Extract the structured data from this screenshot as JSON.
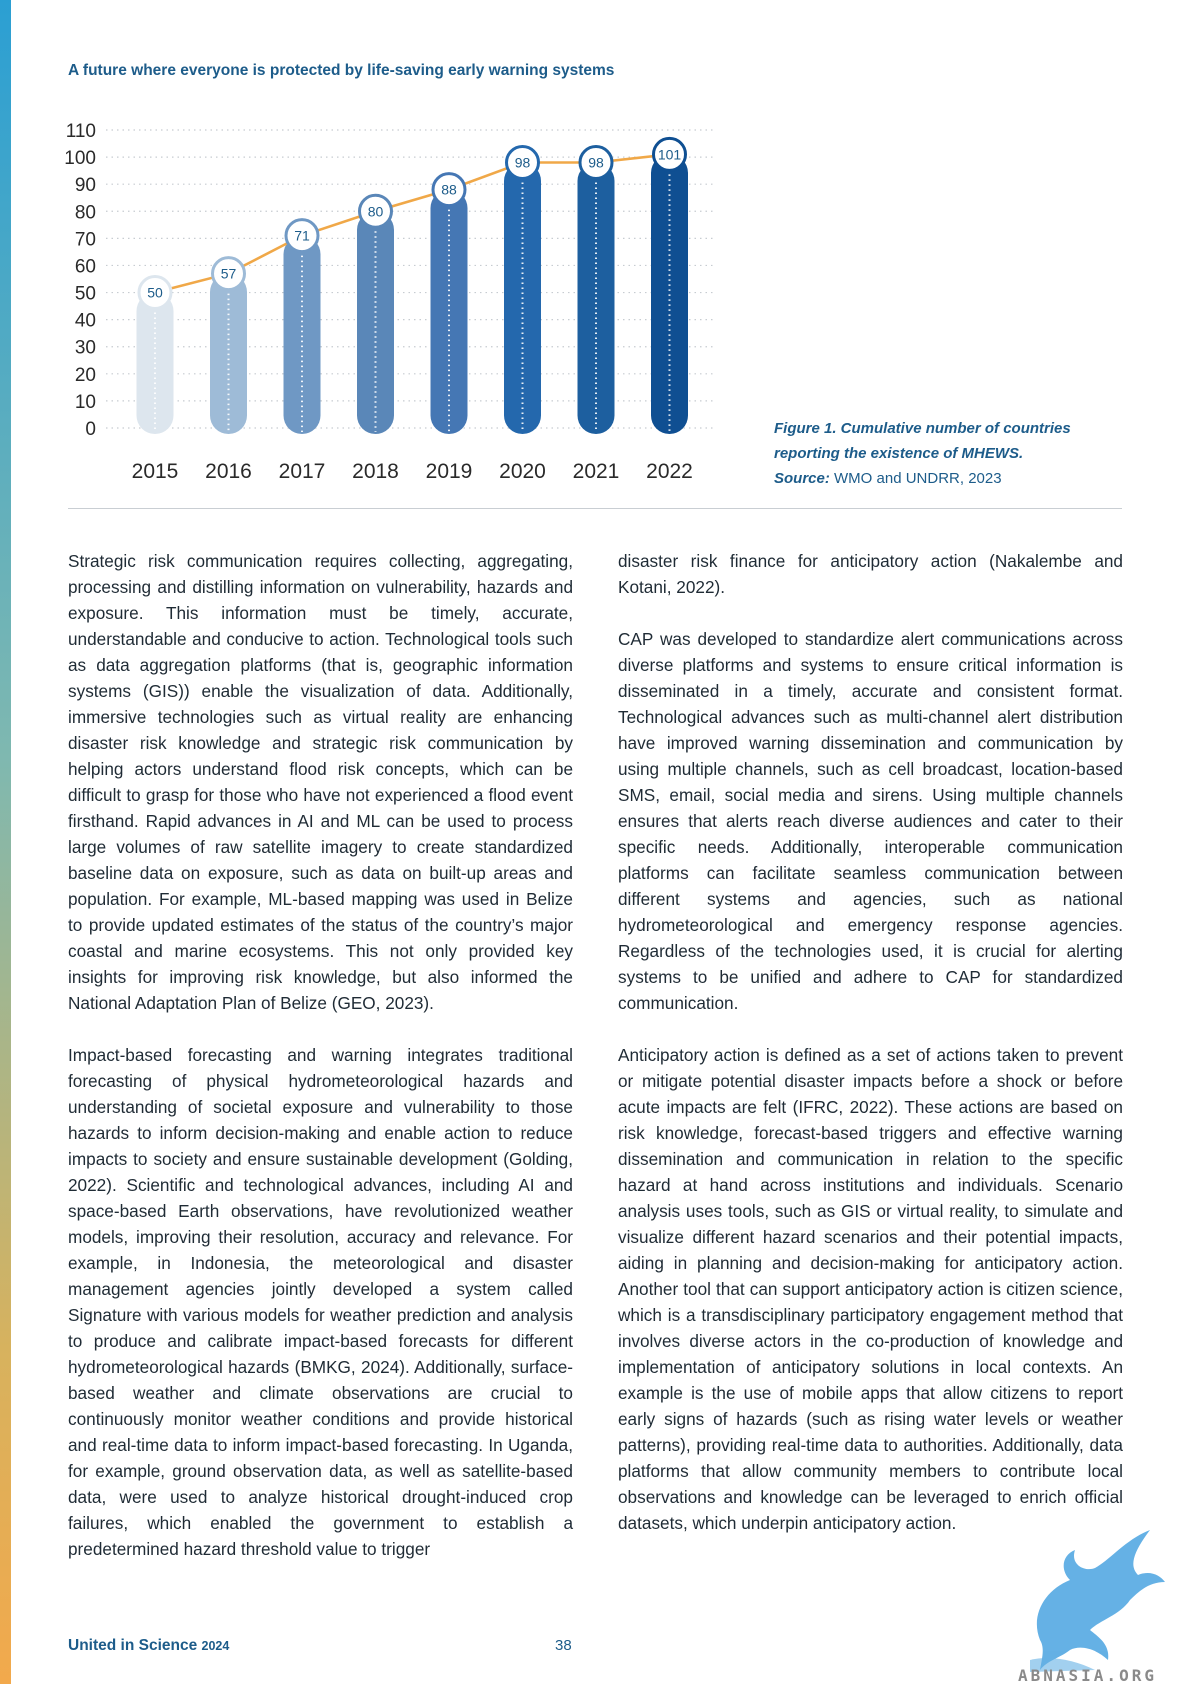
{
  "header": {
    "title": "A future where everyone is protected by life-saving early warning systems"
  },
  "chart_data": {
    "type": "bar",
    "categories": [
      "2015",
      "2016",
      "2017",
      "2018",
      "2019",
      "2020",
      "2021",
      "2022"
    ],
    "values": [
      50,
      57,
      71,
      80,
      88,
      98,
      98,
      101
    ],
    "value_labels": [
      "50",
      "57",
      "71",
      "80",
      "88",
      "98",
      "98",
      "101"
    ],
    "y_ticks": [
      "0",
      "10",
      "20",
      "30",
      "40",
      "50",
      "60",
      "70",
      "80",
      "90",
      "100",
      "110"
    ],
    "ylim": [
      0,
      110
    ],
    "grid": "horizontal dotted",
    "line_overlay": true,
    "colors": {
      "bars": [
        "#dde6ee",
        "#9ebbd7",
        "#6f98c4",
        "#5a87b8",
        "#4577b4",
        "#2468ad",
        "#1d5f9f",
        "#0f4f92"
      ],
      "line": "#f0a848",
      "label_text": "#1d5c8a",
      "tick_text": "#2a2a2a"
    }
  },
  "caption": {
    "figure_line1": "Figure 1. Cumulative number of countries",
    "figure_line2": "reporting the existence of MHEWS.",
    "source_label": "Source:",
    "source_text": " WMO and UNDRR, 2023"
  },
  "body": {
    "left": [
      "Strategic risk communication requires collecting, aggregating, processing and distilling information on vulnerability, hazards and exposure. This information must be timely, accurate, understandable and conducive to action. Technological tools such as data aggregation platforms (that is, geographic information systems (GIS)) enable the visualization of data. Additionally, immersive technologies such as virtual reality are enhancing disaster risk knowledge and strategic risk communication by helping actors understand flood risk concepts, which can be difficult to grasp for those who have not experienced a flood event firsthand. Rapid advances in AI and ML can be used to process large volumes of raw satellite imagery to create standardized baseline data on exposure, such as data on built-up areas and population. For example, ML-based mapping was used in Belize to provide updated estimates of the status of the country’s major coastal and marine ecosystems. This not only provided key insights for improving risk knowledge, but also informed the National Adaptation Plan of Belize (GEO, 2023).",
      "Impact-based forecasting and warning integrates traditional forecasting of physical hydrometeorological hazards and understanding of societal exposure and vulnerability to those hazards to inform decision-making and enable action to reduce impacts to society and ensure sustainable development (Golding, 2022). Scientific and technological advances, including AI and space-based Earth observations, have revolutionized weather models, improving their resolution, accuracy and relevance. For example, in Indonesia, the meteorological and disaster management agencies jointly developed a system called Signature with various models for weather prediction and analysis to produce and calibrate impact-based forecasts for different hydrometeorological hazards (BMKG, 2024). Additionally, surface-based weather and climate observations are crucial to continuously monitor weather conditions and provide historical and real-time data to inform impact-based forecasting. In Uganda, for example, ground observation data, as well as satellite-based data, were used to analyze historical drought-induced crop failures, which enabled the government to establish a predetermined hazard threshold value to trigger"
    ],
    "right": [
      "disaster risk finance for anticipatory action (Nakalembe and Kotani, 2022).",
      "CAP was developed to standardize alert communications across diverse platforms and systems to ensure critical information is disseminated in a timely, accurate and consistent format. Technological advances such as multi-channel alert distribution have improved warning dissemination and communication by using multiple channels, such as cell broadcast, location-based SMS, email, social media and sirens. Using multiple channels ensures that alerts reach diverse audiences and cater to their specific needs. Additionally, interoperable communication platforms can facilitate seamless communication between different systems and agencies, such as national hydrometeorological and emergency response agencies. Regardless of the technologies used, it is crucial for alerting systems to be unified and adhere to CAP for standardized communication.",
      "Anticipatory action is defined as a set of actions taken to prevent or mitigate potential disaster impacts before a shock or before acute impacts are felt (IFRC, 2022). These actions are based on risk knowledge, forecast-based triggers and effective warning dissemination and communication in relation to the specific hazard at hand across institutions and individuals. Scenario analysis uses tools, such as GIS or virtual reality, to simulate and visualize different hazard scenarios and their potential impacts, aiding in planning and decision-making for anticipatory action. Another tool that can support anticipatory action is citizen science, which is a transdisciplinary participatory engagement method that involves diverse actors in the co-production of knowledge and implementation of anticipatory solutions in local contexts. An example is the use of mobile apps that allow citizens to report early signs of hazards (such as rising water levels or weather patterns), providing real-time data to authorities. Additionally, data platforms that allow community members to contribute local observations and knowledge can be leveraged to enrich official datasets, which underpin anticipatory action."
    ]
  },
  "footer": {
    "title": "United in Science",
    "year": "2024",
    "page": "38"
  },
  "watermark": {
    "text": "ABNASIA.ORG",
    "icon": "griffin-logo-icon"
  }
}
